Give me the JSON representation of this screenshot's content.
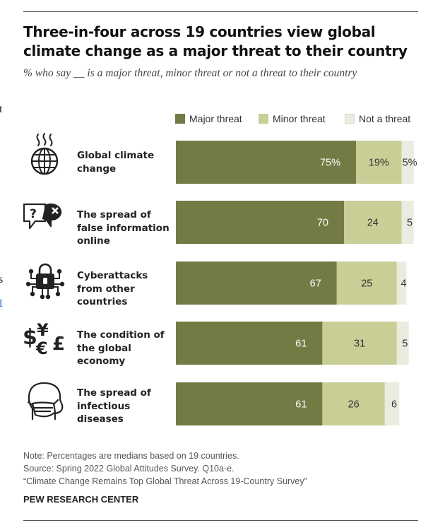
{
  "header": {
    "title": "Three-in-four across 19 countries view global climate change as a major threat to their country",
    "subtitle": "% who say __ is a major threat, minor threat or not a threat to their country"
  },
  "edge_fragments": [
    "t",
    "s",
    "1"
  ],
  "chart_data": {
    "type": "bar",
    "orientation": "horizontal",
    "stacked": true,
    "categories": [
      "Global climate change",
      "The spread of false information online",
      "Cyberattacks from other countries",
      "The condition of the global economy",
      "The spread of infectious diseases"
    ],
    "series": [
      {
        "name": "Major threat",
        "values": [
          75,
          70,
          67,
          61,
          61
        ],
        "labels": [
          "75%",
          "70",
          "67",
          "61",
          "61"
        ]
      },
      {
        "name": "Minor threat",
        "values": [
          19,
          24,
          25,
          31,
          26
        ],
        "labels": [
          "19%",
          "24",
          "25",
          "31",
          "26"
        ]
      },
      {
        "name": "Not a threat",
        "values": [
          5,
          5,
          4,
          5,
          6
        ],
        "labels": [
          "5%",
          "5",
          "4",
          "5",
          "6"
        ]
      }
    ],
    "xlim": [
      0,
      100
    ],
    "unit": "%",
    "legend_position": "top-right",
    "grid": false,
    "colors": {
      "major": "#737a44",
      "minor": "#c8ce96",
      "none": "#ecebdf"
    }
  },
  "rows": [
    {
      "label": "Global climate change",
      "icon": "globe-heat-icon"
    },
    {
      "label": "The spread of false information online",
      "icon": "speech-bubbles-icon"
    },
    {
      "label": "Cyberattacks from other countries",
      "icon": "circuit-lock-icon"
    },
    {
      "label": "The condition of the global economy",
      "icon": "currency-symbols-icon"
    },
    {
      "label": "The spread of infectious diseases",
      "icon": "face-mask-icon"
    }
  ],
  "footer": {
    "note": "Note: Percentages are medians based on 19 countries.",
    "source": "Source: Spring 2022 Global Attitudes Survey. Q10a-e.",
    "report": "“Climate Change Remains Top Global Threat Across 19-Country Survey”",
    "brand": "PEW RESEARCH CENTER"
  }
}
